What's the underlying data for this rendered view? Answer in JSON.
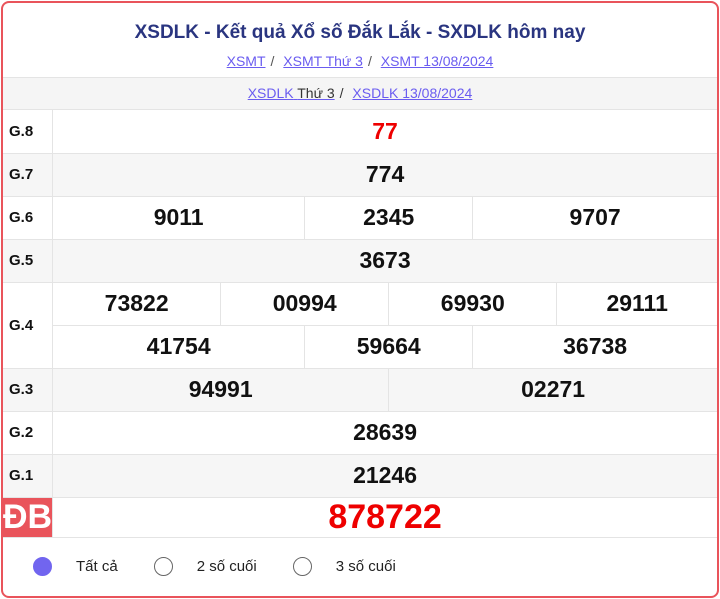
{
  "header": {
    "title": "XSDLK - Kết quả Xổ số Đắk Lắk - SXDLK hôm nay",
    "crumbs": [
      "XSMT",
      "XSMT Thứ 3",
      "XSMT 13/08/2024"
    ]
  },
  "sub": {
    "link1": "XSDLK",
    "link1_suffix": "Thứ 3",
    "link2": "XSDLK 13/08/2024"
  },
  "prizes": {
    "g8": {
      "label": "G.8",
      "values": [
        "77"
      ]
    },
    "g7": {
      "label": "G.7",
      "values": [
        "774"
      ]
    },
    "g6": {
      "label": "G.6",
      "values": [
        "9011",
        "2345",
        "9707"
      ]
    },
    "g5": {
      "label": "G.5",
      "values": [
        "3673"
      ]
    },
    "g4": {
      "label": "G.4",
      "values": [
        "73822",
        "00994",
        "69930",
        "29111",
        "41754",
        "59664",
        "36738"
      ]
    },
    "g3": {
      "label": "G.3",
      "values": [
        "94991",
        "02271"
      ]
    },
    "g2": {
      "label": "G.2",
      "values": [
        "28639"
      ]
    },
    "g1": {
      "label": "G.1",
      "values": [
        "21246"
      ]
    },
    "db": {
      "label": "ĐB",
      "values": [
        "878722"
      ]
    }
  },
  "filter": {
    "options": [
      "Tất cả",
      "2 số cuối",
      "3 số cuối"
    ],
    "selected": "Tất cả"
  },
  "colors": {
    "accent": "#e9545b",
    "prize_red": "#e00000",
    "link": "#6a5cf0",
    "title": "#2a3580"
  }
}
